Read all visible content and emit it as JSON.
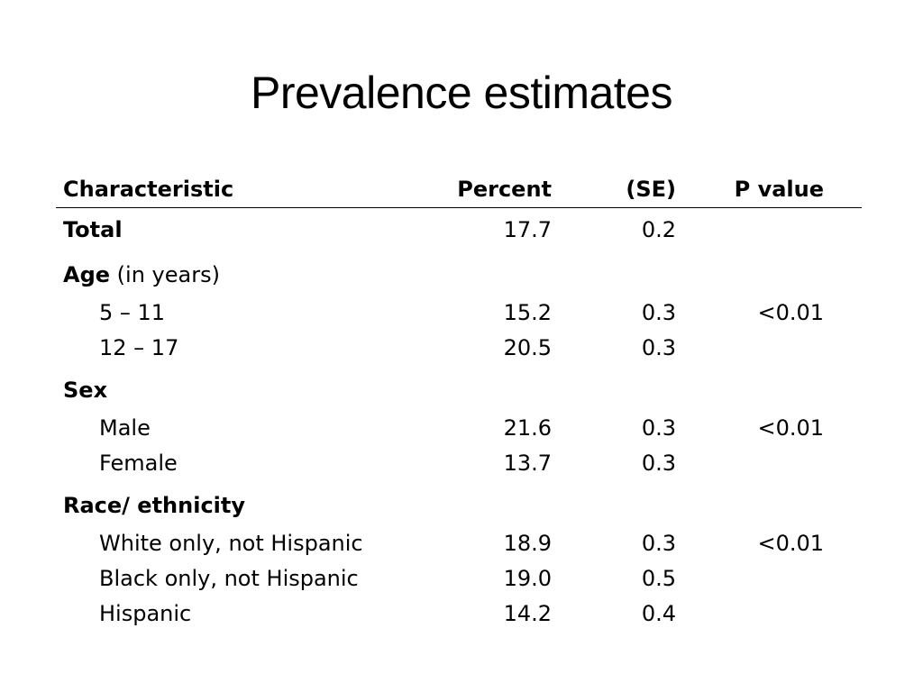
{
  "title": "Prevalence estimates",
  "table": {
    "headers": {
      "characteristic": "Characteristic",
      "percent": "Percent",
      "se": "(SE)",
      "p_value": "P value"
    },
    "total": {
      "label": "Total",
      "percent": "17.7",
      "se": "0.2",
      "p_value": ""
    },
    "age": {
      "label": "Age",
      "label_suffix": " (in years)",
      "rows": [
        {
          "label": "5 – 11",
          "percent": "15.2",
          "se": "0.3",
          "p_value": "<0.01"
        },
        {
          "label": "12 – 17",
          "percent": "20.5",
          "se": "0.3",
          "p_value": ""
        }
      ]
    },
    "sex": {
      "label": "Sex",
      "rows": [
        {
          "label": "Male",
          "percent": "21.6",
          "se": "0.3",
          "p_value": "<0.01"
        },
        {
          "label": "Female",
          "percent": "13.7",
          "se": "0.3",
          "p_value": ""
        }
      ]
    },
    "race": {
      "label": "Race/ ethnicity",
      "rows": [
        {
          "label": "White only, not Hispanic",
          "percent": "18.9",
          "se": "0.3",
          "p_value": "<0.01"
        },
        {
          "label": "Black only, not Hispanic",
          "percent": "19.0",
          "se": "0.5",
          "p_value": ""
        },
        {
          "label": "Hispanic",
          "percent": "14.2",
          "se": "0.4",
          "p_value": ""
        }
      ]
    }
  }
}
